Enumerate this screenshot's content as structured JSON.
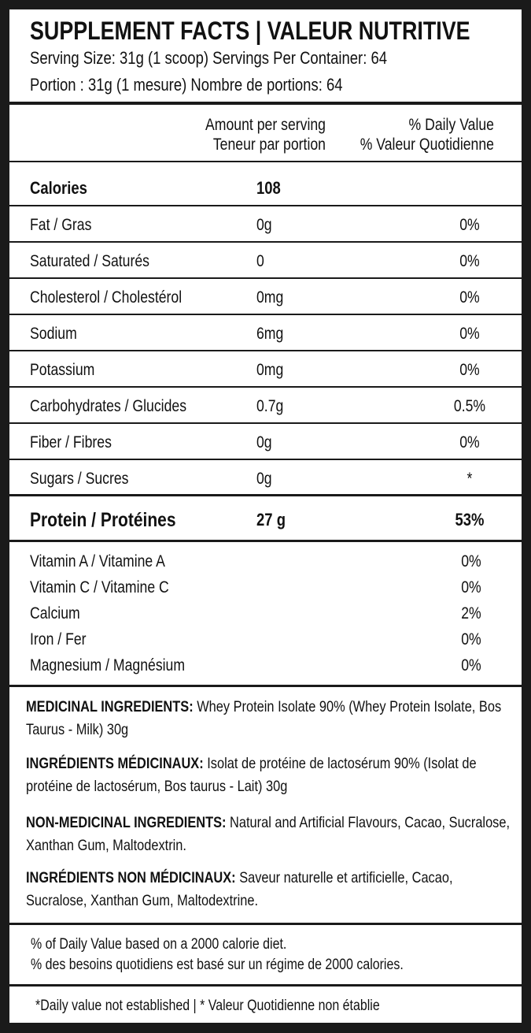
{
  "header": {
    "title": "SUPPLEMENT FACTS | VALEUR NUTRITIVE",
    "serving_en": "Serving Size: 31g (1 scoop) Servings Per Container: 64",
    "serving_fr": "Portion : 31g (1 mesure) Nombre de portions: 64"
  },
  "column_headers": {
    "amount_en": "Amount per serving",
    "amount_fr": "Teneur par portion",
    "dv_en": "% Daily Value",
    "dv_fr": "% Valeur Quotidienne"
  },
  "nutrients": [
    {
      "name": "Calories",
      "amount": "108"
    },
    {
      "name": "Fat / Gras",
      "amount": "0g",
      "dv": "0%"
    },
    {
      "name": "Saturated / Saturés",
      "amount": "0",
      "dv": "0%"
    },
    {
      "name": "Cholesterol / Cholestérol",
      "amount": "0mg",
      "dv": "0%"
    },
    {
      "name": "Sodium",
      "amount": "6mg",
      "dv": "0%"
    },
    {
      "name": "Potassium",
      "amount": "0mg",
      "dv": "0%"
    },
    {
      "name": "Carbohydrates / Glucides",
      "amount": "0.7g",
      "dv": "0.5%"
    },
    {
      "name": "Fiber / Fibres",
      "amount": "0g",
      "dv": "0%"
    },
    {
      "name": "Sugars / Sucres",
      "amount": "0g",
      "dv": "*"
    }
  ],
  "protein": {
    "name": "Protein / Protéines",
    "amount": "27 g",
    "dv": "53%"
  },
  "vitamins": [
    {
      "name": "Vitamin A / Vitamine A",
      "dv": "0%"
    },
    {
      "name": "Vitamin C / Vitamine C",
      "dv": "0%"
    },
    {
      "name": "Calcium",
      "dv": "2%"
    },
    {
      "name": "Iron / Fer",
      "dv": "0%"
    },
    {
      "name": "Magnesium / Magnésium",
      "dv": "0%"
    }
  ],
  "ingredients": [
    {
      "label": "MEDICINAL INGREDIENTS:",
      "text": "Whey Protein Isolate 90% (Whey Protein Isolate, Bos Taurus - Milk) 30g"
    },
    {
      "label": "INGRÉDIENTS MÉDICINAUX:",
      "text": "Isolat de protéine de lactosérum 90% (Isolat de protéine de lactosérum, Bos taurus - Lait)  30g"
    },
    {
      "label": "NON-MEDICINAL INGREDIENTS:",
      "text": "Natural and Artificial Flavours, Cacao, Sucralose, Xanthan Gum, Maltodextrin."
    },
    {
      "label": "INGRÉDIENTS NON MÉDICINAUX:",
      "text": "Saveur naturelle et artificielle, Cacao, Sucralose, Xanthan Gum, Maltodextrine."
    }
  ],
  "footnotes": {
    "daily_value_en": "% of Daily Value based on a 2000 calorie diet.",
    "daily_value_fr": "% des besoins quotidiens est basé sur un régime de 2000 calories.",
    "not_established": "*Daily value not established | * Valeur Quotidienne non établie"
  }
}
